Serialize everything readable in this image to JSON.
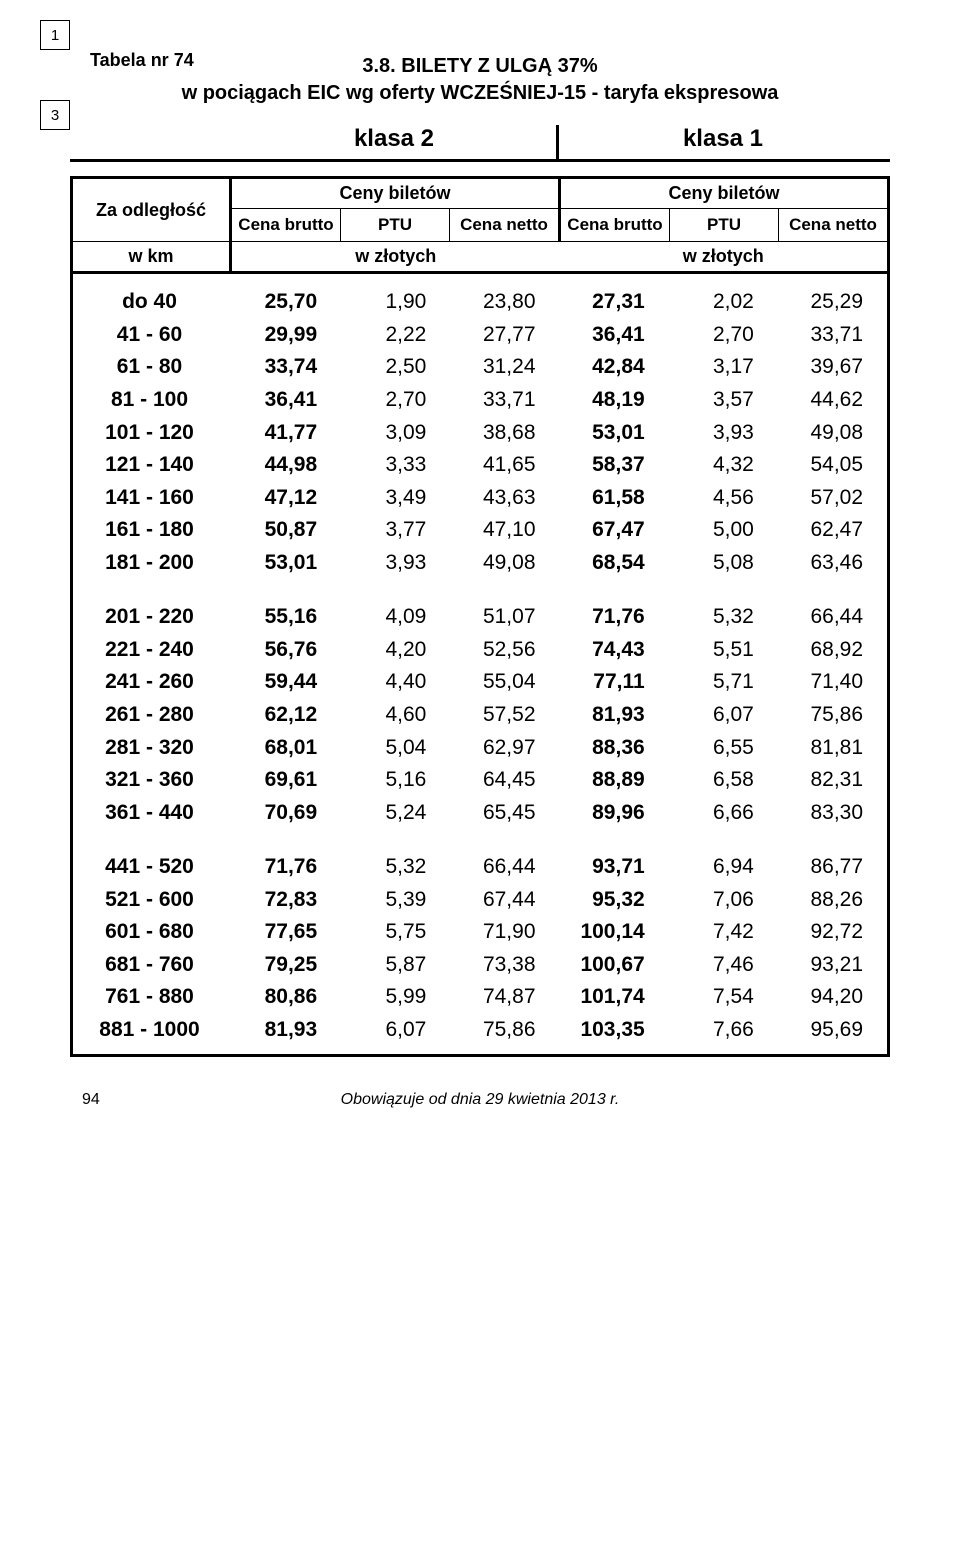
{
  "page": {
    "corner_top": "1",
    "corner_side": "3",
    "tabela_label": "Tabela nr 74",
    "title_line1": "3.8. BILETY  Z  ULGĄ  37%",
    "title_line2": "w pociągach EIC wg oferty WCZEŚNIEJ-15 - taryfa ekspresowa",
    "klasa2": "klasa 2",
    "klasa1": "klasa 1",
    "za_odleglosc": "Za odległość",
    "ceny_biletow": "Ceny biletów",
    "cena_brutto": "Cena brutto",
    "ptu": "PTU",
    "cena_netto": "Cena netto",
    "w_km": "w km",
    "w_zlotych": "w złotych",
    "footer_page": "94",
    "footer_text": "Obowiązuje od dnia 29 kwietnia 2013 r."
  },
  "style": {
    "text_color": "#000000",
    "background": "#ffffff",
    "border_color": "#000000",
    "font_family": "Arial",
    "title_fontsize_pt": 15,
    "header_fontsize_pt": 13,
    "body_fontsize_pt": 16,
    "row_types": [
      "dist",
      "brutto2",
      "ptu2",
      "netto2",
      "brutto1",
      "ptu1",
      "netto1"
    ]
  },
  "groups": [
    {
      "rows": [
        {
          "dist": "do  40",
          "brutto2": "25,70",
          "ptu2": "1,90",
          "netto2": "23,80",
          "brutto1": "27,31",
          "ptu1": "2,02",
          "netto1": "25,29"
        },
        {
          "dist": "41 -  60",
          "brutto2": "29,99",
          "ptu2": "2,22",
          "netto2": "27,77",
          "brutto1": "36,41",
          "ptu1": "2,70",
          "netto1": "33,71"
        },
        {
          "dist": "61 -  80",
          "brutto2": "33,74",
          "ptu2": "2,50",
          "netto2": "31,24",
          "brutto1": "42,84",
          "ptu1": "3,17",
          "netto1": "39,67"
        },
        {
          "dist": "81 -  100",
          "brutto2": "36,41",
          "ptu2": "2,70",
          "netto2": "33,71",
          "brutto1": "48,19",
          "ptu1": "3,57",
          "netto1": "44,62"
        },
        {
          "dist": "101 - 120",
          "brutto2": "41,77",
          "ptu2": "3,09",
          "netto2": "38,68",
          "brutto1": "53,01",
          "ptu1": "3,93",
          "netto1": "49,08"
        },
        {
          "dist": "121 - 140",
          "brutto2": "44,98",
          "ptu2": "3,33",
          "netto2": "41,65",
          "brutto1": "58,37",
          "ptu1": "4,32",
          "netto1": "54,05"
        },
        {
          "dist": "141 - 160",
          "brutto2": "47,12",
          "ptu2": "3,49",
          "netto2": "43,63",
          "brutto1": "61,58",
          "ptu1": "4,56",
          "netto1": "57,02"
        },
        {
          "dist": "161 - 180",
          "brutto2": "50,87",
          "ptu2": "3,77",
          "netto2": "47,10",
          "brutto1": "67,47",
          "ptu1": "5,00",
          "netto1": "62,47"
        },
        {
          "dist": "181 - 200",
          "brutto2": "53,01",
          "ptu2": "3,93",
          "netto2": "49,08",
          "brutto1": "68,54",
          "ptu1": "5,08",
          "netto1": "63,46"
        }
      ]
    },
    {
      "rows": [
        {
          "dist": "201 - 220",
          "brutto2": "55,16",
          "ptu2": "4,09",
          "netto2": "51,07",
          "brutto1": "71,76",
          "ptu1": "5,32",
          "netto1": "66,44"
        },
        {
          "dist": "221 - 240",
          "brutto2": "56,76",
          "ptu2": "4,20",
          "netto2": "52,56",
          "brutto1": "74,43",
          "ptu1": "5,51",
          "netto1": "68,92"
        },
        {
          "dist": "241 - 260",
          "brutto2": "59,44",
          "ptu2": "4,40",
          "netto2": "55,04",
          "brutto1": "77,11",
          "ptu1": "5,71",
          "netto1": "71,40"
        },
        {
          "dist": "261 - 280",
          "brutto2": "62,12",
          "ptu2": "4,60",
          "netto2": "57,52",
          "brutto1": "81,93",
          "ptu1": "6,07",
          "netto1": "75,86"
        },
        {
          "dist": "281 - 320",
          "brutto2": "68,01",
          "ptu2": "5,04",
          "netto2": "62,97",
          "brutto1": "88,36",
          "ptu1": "6,55",
          "netto1": "81,81"
        },
        {
          "dist": "321 - 360",
          "brutto2": "69,61",
          "ptu2": "5,16",
          "netto2": "64,45",
          "brutto1": "88,89",
          "ptu1": "6,58",
          "netto1": "82,31"
        },
        {
          "dist": "361 - 440",
          "brutto2": "70,69",
          "ptu2": "5,24",
          "netto2": "65,45",
          "brutto1": "89,96",
          "ptu1": "6,66",
          "netto1": "83,30"
        }
      ]
    },
    {
      "rows": [
        {
          "dist": "441 - 520",
          "brutto2": "71,76",
          "ptu2": "5,32",
          "netto2": "66,44",
          "brutto1": "93,71",
          "ptu1": "6,94",
          "netto1": "86,77"
        },
        {
          "dist": "521 - 600",
          "brutto2": "72,83",
          "ptu2": "5,39",
          "netto2": "67,44",
          "brutto1": "95,32",
          "ptu1": "7,06",
          "netto1": "88,26"
        },
        {
          "dist": "601 - 680",
          "brutto2": "77,65",
          "ptu2": "5,75",
          "netto2": "71,90",
          "brutto1": "100,14",
          "ptu1": "7,42",
          "netto1": "92,72"
        },
        {
          "dist": "681 - 760",
          "brutto2": "79,25",
          "ptu2": "5,87",
          "netto2": "73,38",
          "brutto1": "100,67",
          "ptu1": "7,46",
          "netto1": "93,21"
        },
        {
          "dist": "761 - 880",
          "brutto2": "80,86",
          "ptu2": "5,99",
          "netto2": "74,87",
          "brutto1": "101,74",
          "ptu1": "7,54",
          "netto1": "94,20"
        },
        {
          "dist": "881 - 1000",
          "brutto2": "81,93",
          "ptu2": "6,07",
          "netto2": "75,86",
          "brutto1": "103,35",
          "ptu1": "7,66",
          "netto1": "95,69"
        }
      ]
    }
  ]
}
